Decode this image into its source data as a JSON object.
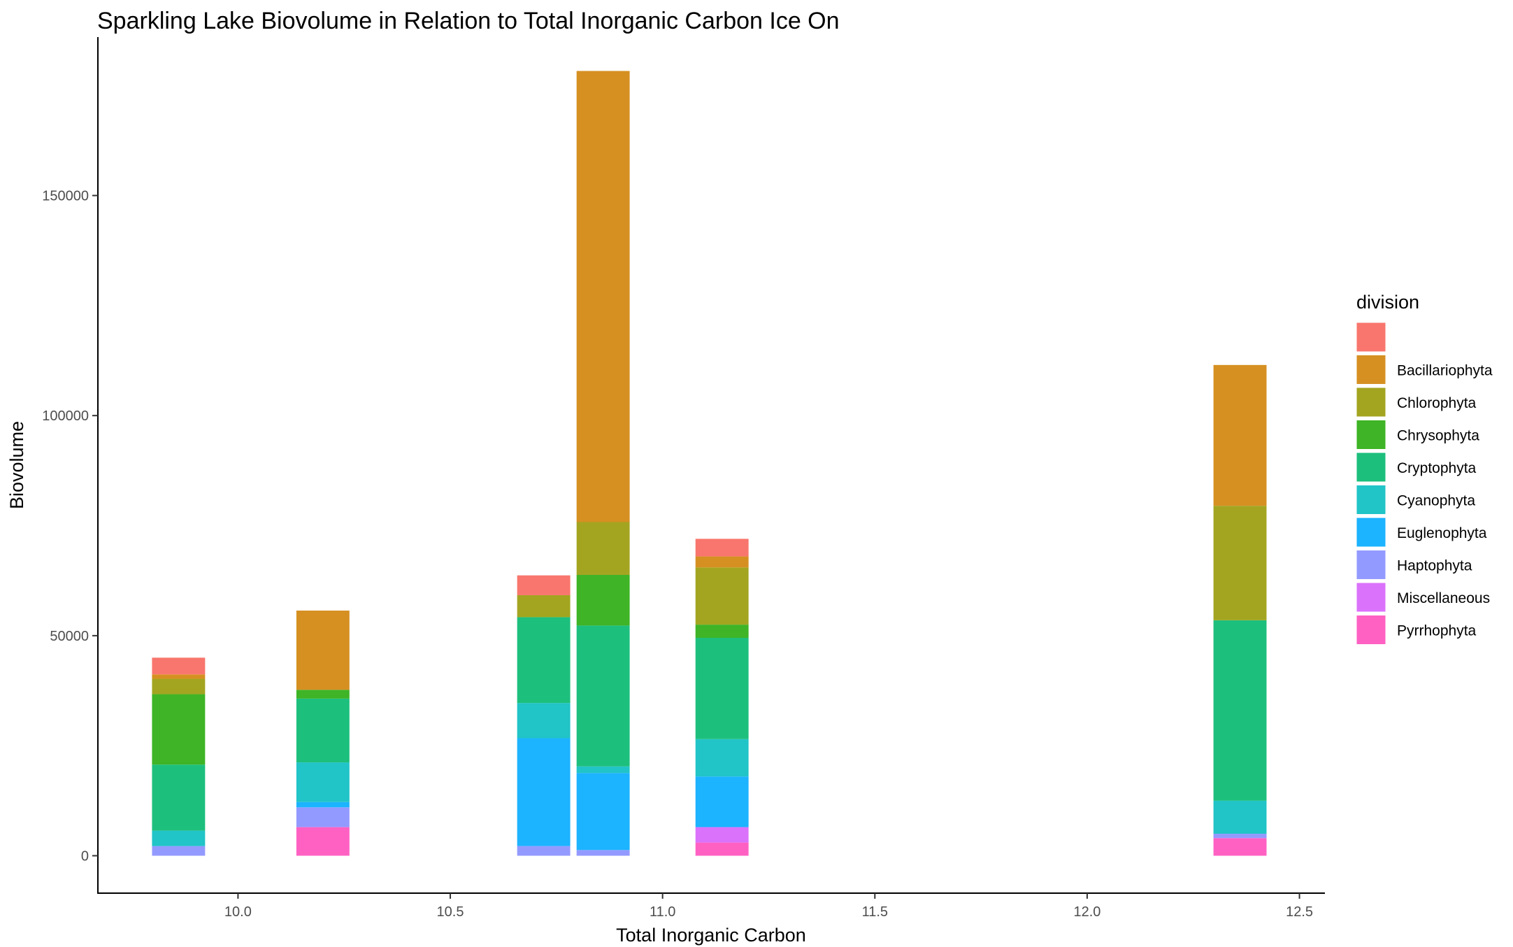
{
  "chart_data": {
    "type": "bar",
    "stacked": true,
    "title": "Sparkling Lake Biovolume in Relation to Total Inorganic Carbon Ice On",
    "xlabel": "Total Inorganic Carbon",
    "ylabel": "Biovolume",
    "xlim": [
      9.67,
      12.56
    ],
    "ylim": [
      -8500,
      186000
    ],
    "x_ticks": [
      10.0,
      10.5,
      11.0,
      11.5,
      12.0,
      12.5
    ],
    "x_tick_labels": [
      "10.0",
      "10.5",
      "11.0",
      "11.5",
      "12.0",
      "12.5"
    ],
    "y_ticks": [
      0,
      50000,
      100000,
      150000
    ],
    "y_tick_labels": [
      "0",
      "50000",
      "100000",
      "150000"
    ],
    "bar_width": 0.125,
    "grid": false,
    "legend": {
      "title": "division",
      "placement": "right"
    },
    "x": [
      9.86,
      10.2,
      10.72,
      10.86,
      11.14,
      12.36
    ],
    "series": [
      {
        "name": "Pyrrhophyta",
        "color": "#FF61C3",
        "values": [
          0,
          6500,
          0,
          0,
          3000,
          4000
        ]
      },
      {
        "name": "Miscellaneous",
        "color": "#DB72FB",
        "values": [
          0,
          0,
          0,
          0,
          3500,
          0
        ]
      },
      {
        "name": "Haptophyta",
        "color": "#939AFF",
        "values": [
          2200,
          4500,
          2200,
          1300,
          0,
          1000
        ]
      },
      {
        "name": "Euglenophyta",
        "color": "#1CB3FF",
        "values": [
          0,
          1200,
          24500,
          17500,
          11500,
          0
        ]
      },
      {
        "name": "Cyanophyta",
        "color": "#21C4C7",
        "values": [
          3500,
          9000,
          8000,
          1500,
          8500,
          7500
        ]
      },
      {
        "name": "Cryptophyta",
        "color": "#1DBF7D",
        "values": [
          15000,
          14500,
          19500,
          32000,
          23000,
          41000
        ]
      },
      {
        "name": "Chrysophyta",
        "color": "#3EB426",
        "values": [
          16000,
          2000,
          0,
          11500,
          3000,
          0
        ]
      },
      {
        "name": "Chlorophyta",
        "color": "#A3A520",
        "values": [
          3500,
          0,
          5000,
          12000,
          13000,
          26000
        ]
      },
      {
        "name": "Bacillariophyta",
        "color": "#D69022",
        "values": [
          1000,
          18000,
          0,
          102500,
          2500,
          32000
        ]
      },
      {
        "name": "",
        "color": "#F8766D",
        "values": [
          3800,
          0,
          4500,
          0,
          4000,
          0
        ]
      }
    ],
    "legend_order": [
      "",
      "Bacillariophyta",
      "Chlorophyta",
      "Chrysophyta",
      "Cryptophyta",
      "Cyanophyta",
      "Euglenophyta",
      "Haptophyta",
      "Miscellaneous",
      "Pyrrhophyta"
    ]
  }
}
